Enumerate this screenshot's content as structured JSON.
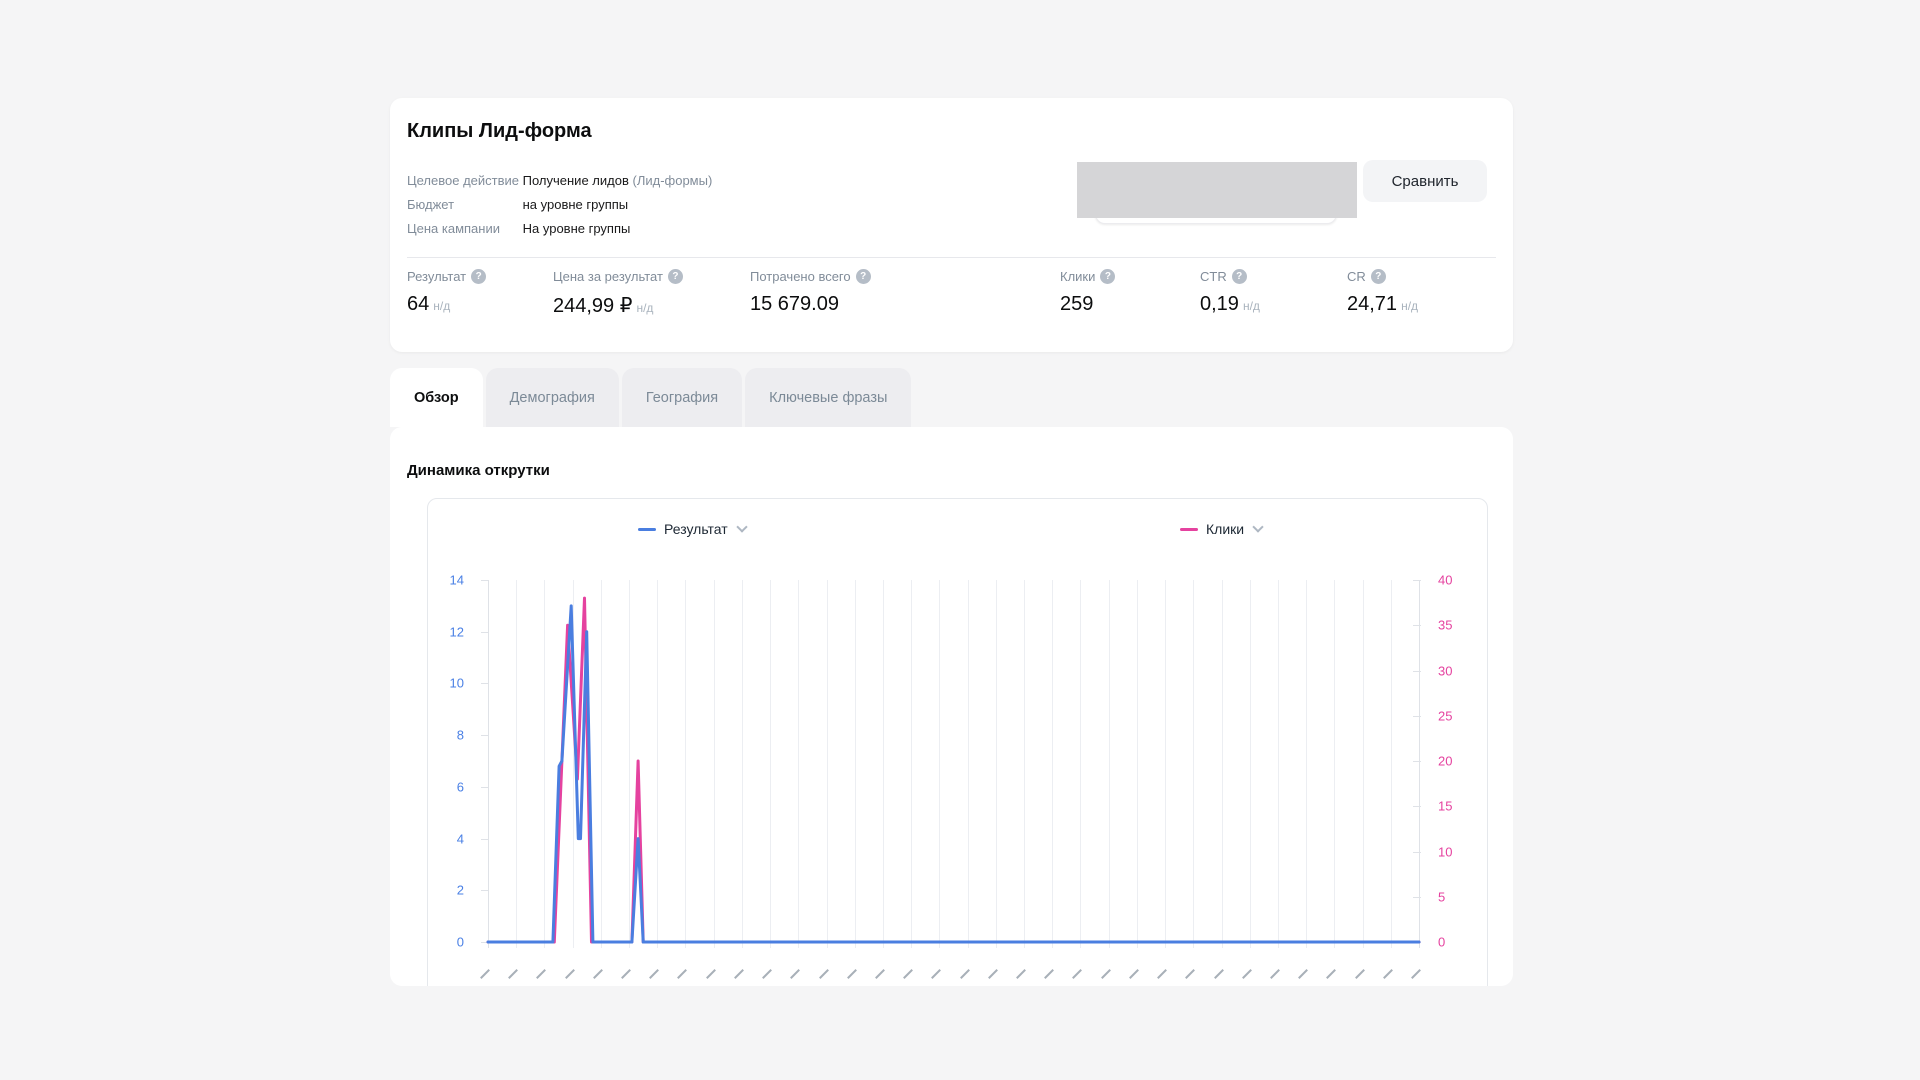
{
  "header": {
    "title": "Клипы Лид-форма",
    "info_rows": [
      {
        "label": "Целевое действие",
        "value": "Получение лидов",
        "note": "(Лид-формы)"
      },
      {
        "label": "Бюджет",
        "value": "на уровне группы",
        "note": ""
      },
      {
        "label": "Цена кампании",
        "value": "На уровне группы",
        "note": ""
      }
    ],
    "compare_button": "Сравнить",
    "help_icon_glyph": "?",
    "metrics": [
      {
        "label": "Результат",
        "value": "64",
        "suffix": "н/д"
      },
      {
        "label": "Цена за результат",
        "value": "244,99 ₽",
        "suffix": "н/д"
      },
      {
        "label": "Потрачено всего",
        "value": "15 679.09",
        "suffix": ""
      },
      {
        "label": "Клики",
        "value": "259",
        "suffix": ""
      },
      {
        "label": "CTR",
        "value": "0,19",
        "suffix": "н/д"
      },
      {
        "label": "CR",
        "value": "24,71",
        "suffix": "н/д"
      }
    ]
  },
  "tabs": [
    {
      "label": "Обзор",
      "active": true
    },
    {
      "label": "Демография",
      "active": false
    },
    {
      "label": "География",
      "active": false
    },
    {
      "label": "Ключевые фразы",
      "active": false
    }
  ],
  "section_title": "Динамика открутки",
  "chart_data": {
    "type": "line",
    "title": "Динамика открутки",
    "legend": [
      {
        "label": "Результат",
        "color": "#4a7ee0"
      },
      {
        "label": "Клики",
        "color": "#e5429f"
      }
    ],
    "x_axis": {
      "gridline_count": 34,
      "intervals": 33,
      "labels_rotated": true,
      "labels_clipped": true
    },
    "y_left": {
      "series": "Результат",
      "min": 0,
      "max": 14,
      "ticks": [
        14,
        12,
        10,
        8,
        6,
        4,
        2,
        0
      ],
      "color": "#4a80e5"
    },
    "y_right": {
      "series": "Клики",
      "min": 0,
      "max": 40,
      "ticks": [
        40,
        35,
        30,
        25,
        20,
        15,
        10,
        5,
        0
      ],
      "color": "#e5429f"
    },
    "series": [
      {
        "name": "Результат",
        "axis": "left",
        "color": "#4a7ee0",
        "points": [
          [
            0,
            0
          ],
          [
            2.3,
            0
          ],
          [
            2.52,
            6.8
          ],
          [
            2.62,
            7
          ],
          [
            2.95,
            13
          ],
          [
            3.2,
            4
          ],
          [
            3.28,
            4
          ],
          [
            3.5,
            12
          ],
          [
            3.72,
            0
          ],
          [
            5.1,
            0
          ],
          [
            5.32,
            4
          ],
          [
            5.5,
            0
          ],
          [
            33,
            0
          ]
        ]
      },
      {
        "name": "Клики",
        "axis": "right",
        "color": "#e5429f",
        "points": [
          [
            0,
            0
          ],
          [
            2.35,
            0
          ],
          [
            2.82,
            35
          ],
          [
            3.17,
            18
          ],
          [
            3.42,
            38
          ],
          [
            3.67,
            0
          ],
          [
            5.1,
            0
          ],
          [
            5.32,
            20
          ],
          [
            5.5,
            0
          ],
          [
            33,
            0
          ]
        ]
      }
    ]
  }
}
